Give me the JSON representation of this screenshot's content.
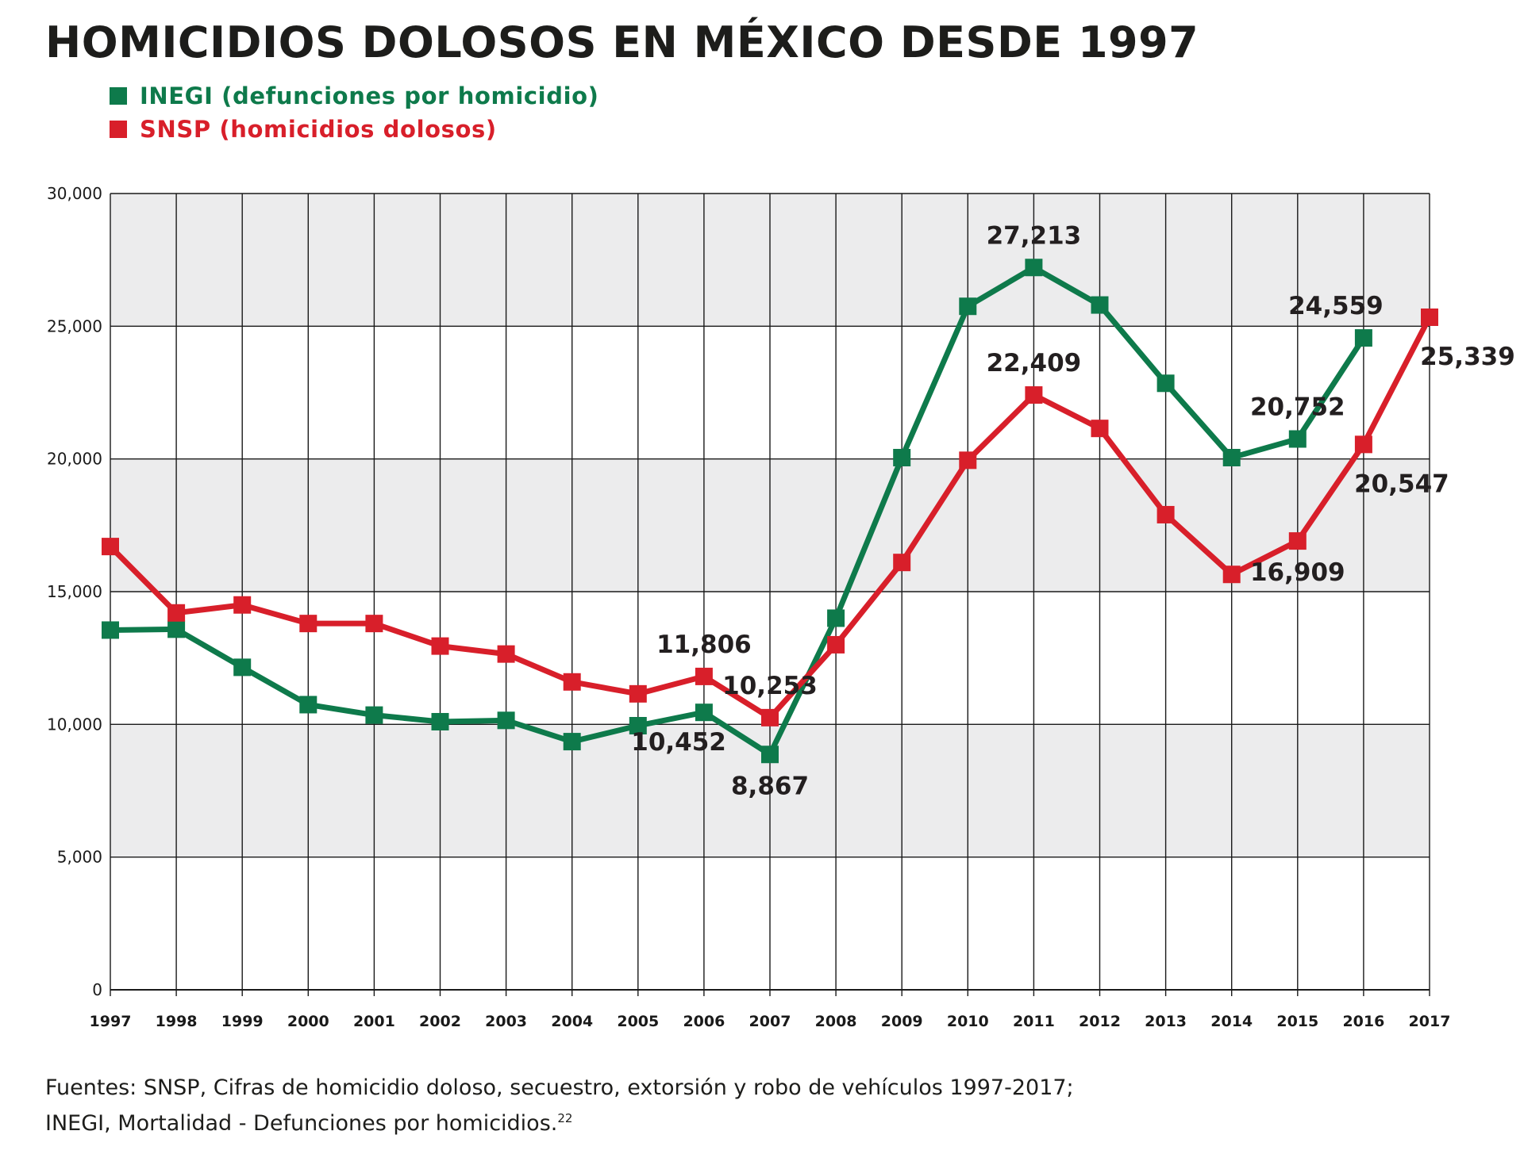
{
  "title": "HOMICIDIOS DOLOSOS EN MÉXICO DESDE 1997",
  "legend": [
    {
      "label": "INEGI (defunciones por homicidio)",
      "color": "#0e7a4b"
    },
    {
      "label": "SNSP (homicidios dolosos)",
      "color": "#d81f2a"
    }
  ],
  "chart_data": {
    "type": "line",
    "x": [
      "1997",
      "1998",
      "1999",
      "2000",
      "2001",
      "2002",
      "2003",
      "2004",
      "2005",
      "2006",
      "2007",
      "2008",
      "2009",
      "2010",
      "2011",
      "2012",
      "2013",
      "2014",
      "2015",
      "2016",
      "2017"
    ],
    "ylim": [
      0,
      30000
    ],
    "yticks": [
      0,
      5000,
      10000,
      15000,
      20000,
      25000,
      30000
    ],
    "ytick_labels": [
      "0",
      "5,000",
      "10,000",
      "15,000",
      "20,000",
      "25,000",
      "30,000"
    ],
    "grid": true,
    "series": [
      {
        "name": "INEGI (defunciones por homicidio)",
        "color": "#0e7a4b",
        "values": [
          13552,
          13585,
          12150,
          10743,
          10350,
          10100,
          10150,
          9350,
          9950,
          10452,
          8867,
          14000,
          20050,
          25750,
          27213,
          25800,
          22850,
          20050,
          20752,
          24559,
          null
        ]
      },
      {
        "name": "SNSP (homicidios dolosos)",
        "color": "#d81f2a",
        "values": [
          16700,
          14200,
          14500,
          13800,
          13800,
          12950,
          12650,
          11600,
          11150,
          11806,
          10253,
          13000,
          16100,
          19950,
          22409,
          21150,
          17900,
          15650,
          16909,
          20547,
          25339
        ]
      }
    ],
    "annotations": [
      {
        "series": 0,
        "index": 9,
        "text": "10,452",
        "pos": "below-left"
      },
      {
        "series": 0,
        "index": 10,
        "text": "8,867",
        "pos": "below"
      },
      {
        "series": 0,
        "index": 14,
        "text": "27,213",
        "pos": "above"
      },
      {
        "series": 0,
        "index": 18,
        "text": "20,752",
        "pos": "above"
      },
      {
        "series": 0,
        "index": 19,
        "text": "24,559",
        "pos": "above-left"
      },
      {
        "series": 1,
        "index": 9,
        "text": "11,806",
        "pos": "above"
      },
      {
        "series": 1,
        "index": 10,
        "text": "10,253",
        "pos": "above"
      },
      {
        "series": 1,
        "index": 14,
        "text": "22,409",
        "pos": "above"
      },
      {
        "series": 1,
        "index": 18,
        "text": "16,909",
        "pos": "below"
      },
      {
        "series": 1,
        "index": 19,
        "text": "20,547",
        "pos": "below-right"
      },
      {
        "series": 1,
        "index": 20,
        "text": "25,339",
        "pos": "below-right"
      }
    ]
  },
  "sources": {
    "line1": "Fuentes: SNSP, Cifras de homicidio doloso, secuestro, extorsión y robo de vehículos 1997-2017;",
    "line2": "INEGI, Mortalidad - Defunciones por homicidios.",
    "footnote": "22"
  }
}
